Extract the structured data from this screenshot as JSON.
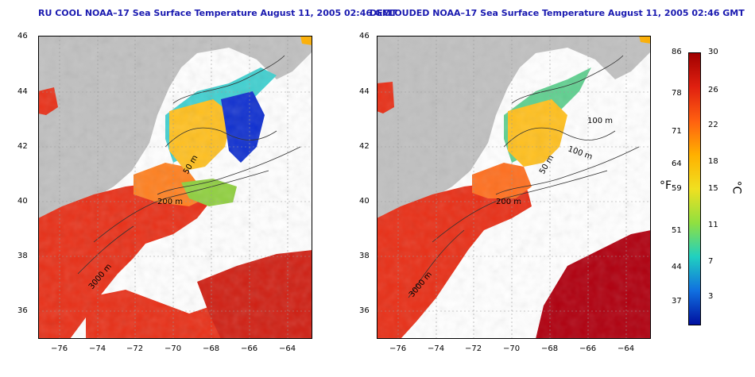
{
  "panels": [
    {
      "title": "RU COOL NOAA–17 Sea Surface Temperature August 11, 2005 02:46 GMT",
      "contour_labels": [
        "50 m",
        "200 m",
        "3000 m"
      ]
    },
    {
      "title": "DECLOUDED NOAA–17 Sea Surface Temperature August 11, 2005 02:46 GMT",
      "contour_labels": [
        "100 m",
        "100 m",
        "50 m",
        "200 m",
        "3000 m"
      ]
    }
  ],
  "axes": {
    "lon_ticks": [
      "−76",
      "−74",
      "−72",
      "−70",
      "−68",
      "−66",
      "−64"
    ],
    "lat_ticks": [
      "46",
      "44",
      "42",
      "40",
      "38",
      "36"
    ]
  },
  "colorbar": {
    "f_unit": "°F",
    "c_unit": "°C",
    "f_ticks": [
      "86",
      "78",
      "71",
      "64",
      "59",
      "51",
      "44",
      "37"
    ],
    "c_ticks": [
      "30",
      "26",
      "22",
      "18",
      "15",
      "11",
      "7",
      "3"
    ],
    "colors": [
      "#a00000",
      "#e02010",
      "#ff6010",
      "#ffb000",
      "#f0e020",
      "#90e040",
      "#20d0c0",
      "#1070e0",
      "#0010a0"
    ]
  },
  "colors": {
    "land": "#c0c0c0",
    "cloud": "#ffffff",
    "warm": "#e83018",
    "hot": "#b00010",
    "mid": "#ffb020",
    "cool": "#40d0d0",
    "cold": "#1030d0"
  }
}
